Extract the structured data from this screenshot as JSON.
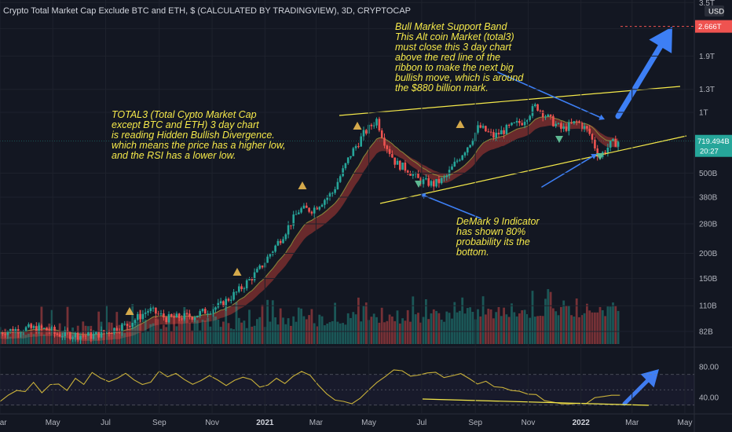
{
  "chart_title": "Crypto Total Market Cap Exclude BTC and ETH, $ (CALCULATED BY TRADINGVIEW), 3D, CRYPTOCAP",
  "currency_label": "USD",
  "annotations": {
    "divergence": "TOTAL3 (Total Cypto Market Cap\nexcept BTC and ETH) 3 day chart\nis reading Hidden Bullish Divergence.\nwhich means the price has a higher low,\nand the RSI has a lower low.",
    "support_band": "Bull Market Support Band\nThis Alt coin Market (total3)\nmust close this 3 day chart\nabove the red line of the\nribbon to make the next big\nbullish move, which is around\nthe $880 billion mark.",
    "demark": "DeMark 9 Indicator\nhas shown 80%\nprobability its the\nbottom."
  },
  "price_badges": {
    "target": "2.666T",
    "last": "719.494B",
    "countdown": "20:27"
  },
  "colors": {
    "up": "#26a69a",
    "down": "#ef5350",
    "annotation": "#f5e94a",
    "arrow": "#3d7ff5",
    "ribbon_fill": "#b03a35",
    "ribbon_line": "#8a8a3a",
    "rsi": "#c9b13a"
  },
  "chart_data": [
    {
      "type": "candlestick",
      "title": "Crypto Total Market Cap Exclude BTC and ETH, $ (CALCULATED BY TRADINGVIEW), 3D, CRYPTOCAP",
      "y_scale": "log",
      "y_ticks": [
        "3.5T",
        "2.6T",
        "1.9T",
        "1.3T",
        "1T",
        "500B",
        "380B",
        "280B",
        "200B",
        "150B",
        "110B",
        "82B"
      ],
      "y_tick_values": [
        3500,
        2600,
        1900,
        1300,
        1000,
        500,
        380,
        280,
        200,
        150,
        110,
        82
      ],
      "x_ticks": [
        "Mar",
        "May",
        "Jul",
        "Sep",
        "Nov",
        "2021",
        "Mar",
        "May",
        "Jul",
        "Sep",
        "Nov",
        "2022",
        "Mar",
        "May"
      ],
      "x_tick_dates": [
        "2020-03-01",
        "2020-05-01",
        "2020-07-01",
        "2020-09-01",
        "2020-11-01",
        "2021-01-01",
        "2021-03-01",
        "2021-05-01",
        "2021-07-01",
        "2021-09-01",
        "2021-11-01",
        "2022-01-01",
        "2022-03-01",
        "2022-05-01"
      ],
      "close_path": [
        [
          "2020-05-01",
          80
        ],
        [
          "2020-06-15",
          78
        ],
        [
          "2020-07-25",
          88
        ],
        [
          "2020-08-20",
          105
        ],
        [
          "2020-09-10",
          95
        ],
        [
          "2020-10-10",
          98
        ],
        [
          "2020-11-10",
          110
        ],
        [
          "2020-12-01",
          130
        ],
        [
          "2020-12-25",
          165
        ],
        [
          "2021-01-20",
          240
        ],
        [
          "2021-02-10",
          330
        ],
        [
          "2021-02-25",
          330
        ],
        [
          "2021-03-20",
          400
        ],
        [
          "2021-04-10",
          620
        ],
        [
          "2021-04-25",
          780
        ],
        [
          "2021-05-10",
          920
        ],
        [
          "2021-05-20",
          700
        ],
        [
          "2021-06-01",
          560
        ],
        [
          "2021-06-15",
          520
        ],
        [
          "2021-06-28",
          460
        ],
        [
          "2021-07-15",
          440
        ],
        [
          "2021-07-28",
          470
        ],
        [
          "2021-08-10",
          570
        ],
        [
          "2021-08-25",
          700
        ],
        [
          "2021-09-05",
          850
        ],
        [
          "2021-09-22",
          760
        ],
        [
          "2021-10-10",
          840
        ],
        [
          "2021-10-25",
          900
        ],
        [
          "2021-11-10",
          1080
        ],
        [
          "2021-11-25",
          930
        ],
        [
          "2021-12-10",
          820
        ],
        [
          "2021-12-28",
          900
        ],
        [
          "2022-01-10",
          800
        ],
        [
          "2022-01-22",
          600
        ],
        [
          "2022-02-05",
          700
        ],
        [
          "2022-02-15",
          719.494
        ]
      ],
      "target_level": 2666,
      "last_price": 719.494
    },
    {
      "type": "line",
      "name": "RSI",
      "y_ticks": [
        "80.00",
        "40.00"
      ],
      "y_tick_values": [
        80,
        40
      ],
      "levels": [
        70,
        50,
        30
      ],
      "values": [
        35,
        46,
        52,
        48,
        58,
        44,
        55,
        60,
        52,
        62,
        58,
        70,
        66,
        58,
        68,
        72,
        64,
        56,
        60,
        72,
        68,
        74,
        66,
        58,
        62,
        70,
        64,
        57,
        60,
        67,
        62,
        54,
        58,
        66,
        60,
        70,
        74,
        68,
        56,
        44,
        38,
        33,
        34,
        40,
        50,
        60,
        68,
        74,
        72,
        66,
        70,
        74,
        70,
        66,
        69,
        72,
        64,
        60,
        62,
        56,
        52,
        50,
        48,
        44,
        42,
        38,
        36,
        34,
        32,
        30,
        31,
        38,
        43,
        40,
        42
      ]
    }
  ]
}
